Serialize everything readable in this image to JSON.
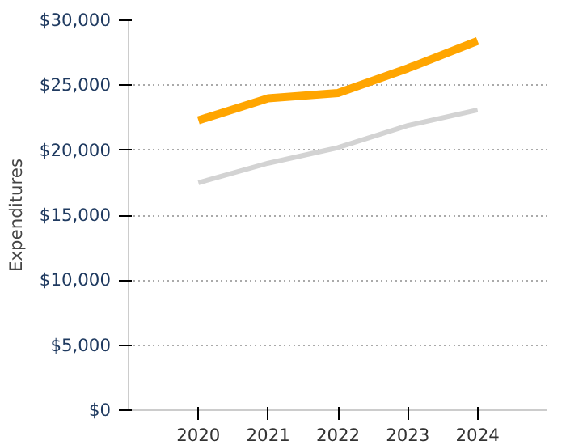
{
  "chart_data": {
    "type": "line",
    "ylabel": "Expenditures",
    "x": [
      2020,
      2021,
      2022,
      2023,
      2024
    ],
    "series": [
      {
        "color": "#ffa500",
        "values": [
          22300,
          24000,
          24400,
          26300,
          28400
        ]
      },
      {
        "color": "#d3d3d3",
        "values": [
          17500,
          19000,
          20200,
          21900,
          23100
        ]
      }
    ],
    "xlim": [
      2019,
      2025
    ],
    "xticks": [
      2020,
      2021,
      2022,
      2023,
      2024
    ],
    "ylim": [
      0,
      30000
    ],
    "yticks": [
      {
        "value": 0,
        "label": "$0"
      },
      {
        "value": 5000,
        "label": "$5,000"
      },
      {
        "value": 10000,
        "label": "$10,000"
      },
      {
        "value": 15000,
        "label": "$15,000"
      },
      {
        "value": 20000,
        "label": "$20,000"
      },
      {
        "value": 25000,
        "label": "$25,000"
      },
      {
        "value": 30000,
        "label": "$30,000"
      }
    ],
    "grid": "y",
    "marker": "none",
    "line_style": "solid"
  }
}
